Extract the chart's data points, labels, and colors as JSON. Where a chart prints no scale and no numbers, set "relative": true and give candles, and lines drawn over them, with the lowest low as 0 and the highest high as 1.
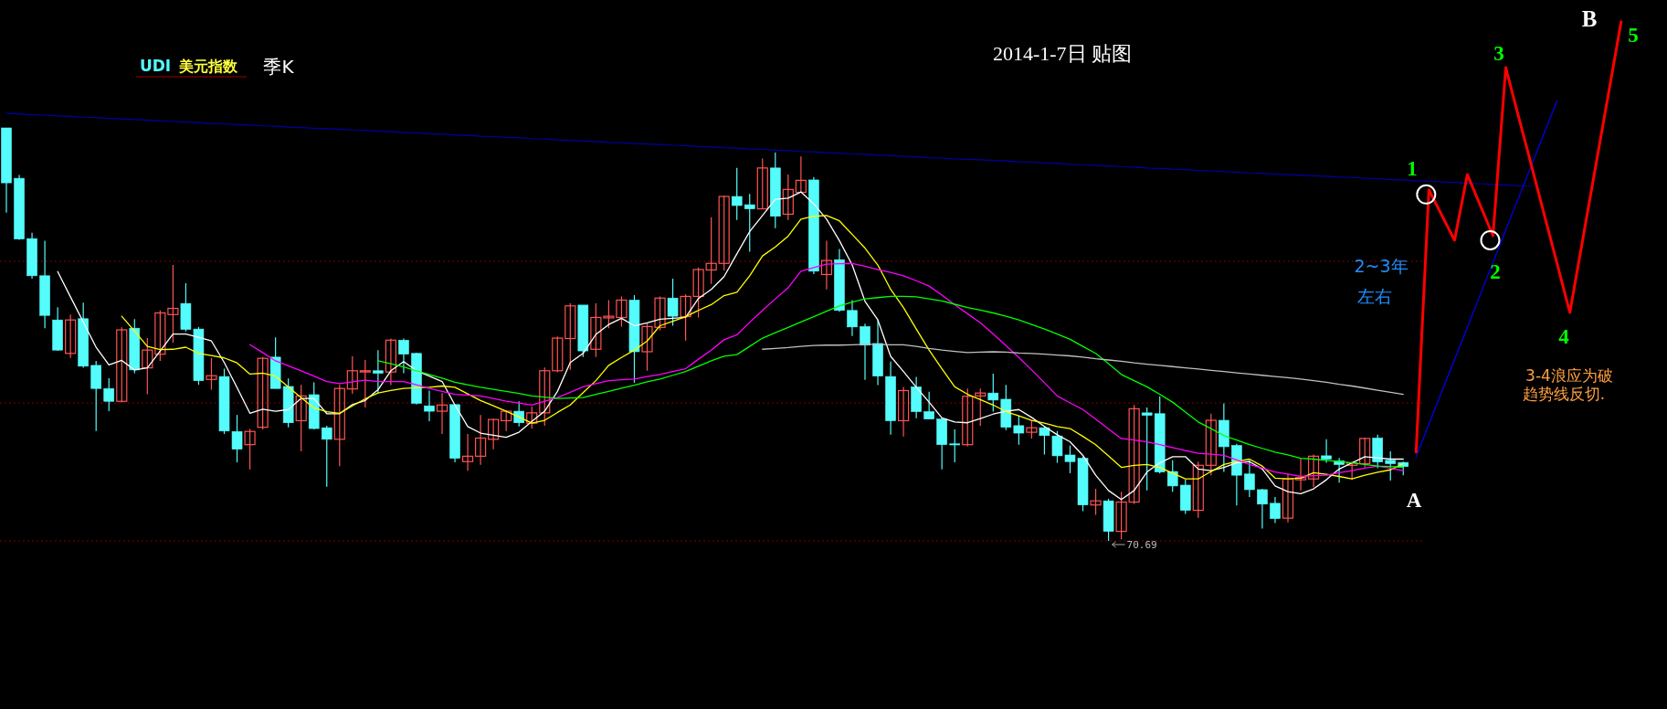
{
  "chart_data": {
    "type": "candlestick",
    "relative": true,
    "title": "2014-1-7日 贴图",
    "categories": [
      null,
      null,
      null,
      null,
      null,
      null,
      null,
      null,
      null,
      null,
      null,
      null,
      null,
      null,
      null,
      null,
      null,
      null,
      null,
      null,
      null,
      null,
      null,
      null,
      null,
      null,
      null,
      null,
      null,
      null,
      null,
      null,
      null,
      null,
      null,
      null,
      null,
      null,
      null,
      null,
      null,
      null,
      null,
      null,
      null,
      null,
      null,
      null,
      null,
      null,
      null,
      null,
      null,
      null,
      null,
      null,
      null,
      null,
      null,
      null,
      null,
      null,
      null,
      null,
      null,
      null,
      null,
      null,
      null,
      null,
      null,
      null,
      null,
      null,
      null,
      null,
      null,
      null,
      null,
      null,
      null,
      null,
      null,
      null,
      null,
      null,
      null,
      null,
      null,
      null,
      null,
      null,
      null,
      null,
      null,
      null,
      null,
      null,
      null,
      null,
      null,
      null,
      null,
      null,
      null,
      null,
      null,
      null,
      null,
      null,
      null,
      null,
      null,
      null,
      null,
      null,
      null,
      null,
      null,
      null,
      null,
      null,
      null,
      null,
      null,
      null,
      null
    ],
    "ohlc": [
      [
        1.0,
        1.0,
        0.795,
        0.867
      ],
      [
        0.878,
        0.886,
        0.729,
        0.731
      ],
      [
        0.732,
        0.746,
        0.635,
        0.642
      ],
      [
        0.642,
        0.727,
        0.515,
        0.546
      ],
      [
        0.535,
        0.566,
        0.46,
        0.462
      ],
      [
        0.454,
        0.548,
        0.443,
        0.535
      ],
      [
        0.538,
        0.577,
        0.419,
        0.423
      ],
      [
        0.425,
        0.436,
        0.266,
        0.369
      ],
      [
        0.369,
        0.394,
        0.314,
        0.338
      ],
      [
        0.338,
        0.517,
        0.335,
        0.511
      ],
      [
        0.515,
        0.537,
        0.406,
        0.414
      ],
      [
        0.419,
        0.491,
        0.355,
        0.462
      ],
      [
        0.452,
        0.558,
        0.436,
        0.552
      ],
      [
        0.548,
        0.668,
        0.48,
        0.563
      ],
      [
        0.575,
        0.624,
        0.507,
        0.512
      ],
      [
        0.513,
        0.518,
        0.378,
        0.388
      ],
      [
        0.391,
        0.443,
        0.366,
        0.4
      ],
      [
        0.398,
        0.417,
        0.259,
        0.266
      ],
      [
        0.265,
        0.305,
        0.19,
        0.222
      ],
      [
        0.233,
        0.271,
        0.173,
        0.265
      ],
      [
        0.275,
        0.445,
        0.27,
        0.442
      ],
      [
        0.445,
        0.493,
        0.369,
        0.369
      ],
      [
        0.374,
        0.393,
        0.275,
        0.286
      ],
      [
        0.291,
        0.378,
        0.217,
        0.351
      ],
      [
        0.354,
        0.384,
        0.27,
        0.272
      ],
      [
        0.274,
        0.279,
        0.131,
        0.246
      ],
      [
        0.246,
        0.378,
        0.181,
        0.369
      ],
      [
        0.368,
        0.447,
        0.356,
        0.412
      ],
      [
        0.409,
        0.438,
        0.323,
        0.412
      ],
      [
        0.412,
        0.462,
        0.358,
        0.406
      ],
      [
        0.409,
        0.49,
        0.377,
        0.486
      ],
      [
        0.486,
        0.49,
        0.406,
        0.452
      ],
      [
        0.454,
        0.456,
        0.33,
        0.333
      ],
      [
        0.327,
        0.364,
        0.29,
        0.314
      ],
      [
        0.314,
        0.358,
        0.259,
        0.329
      ],
      [
        0.33,
        0.33,
        0.19,
        0.2
      ],
      [
        0.192,
        0.259,
        0.17,
        0.205
      ],
      [
        0.205,
        0.305,
        0.184,
        0.249
      ],
      [
        0.246,
        0.296,
        0.222,
        0.294
      ],
      [
        0.291,
        0.316,
        0.266,
        0.314
      ],
      [
        0.314,
        0.338,
        0.277,
        0.286
      ],
      [
        0.285,
        0.325,
        0.272,
        0.31
      ],
      [
        0.31,
        0.42,
        0.279,
        0.412
      ],
      [
        0.412,
        0.495,
        0.408,
        0.491
      ],
      [
        0.49,
        0.575,
        0.414,
        0.569
      ],
      [
        0.571,
        0.571,
        0.445,
        0.46
      ],
      [
        0.464,
        0.575,
        0.445,
        0.541
      ],
      [
        0.54,
        0.583,
        0.515,
        0.544
      ],
      [
        0.541,
        0.592,
        0.519,
        0.583
      ],
      [
        0.583,
        0.595,
        0.383,
        0.458
      ],
      [
        0.458,
        0.528,
        0.412,
        0.519
      ],
      [
        0.517,
        0.592,
        0.51,
        0.588
      ],
      [
        0.588,
        0.635,
        0.521,
        0.544
      ],
      [
        0.543,
        0.597,
        0.485,
        0.592
      ],
      [
        0.592,
        0.662,
        0.541,
        0.657
      ],
      [
        0.656,
        0.784,
        0.622,
        0.672
      ],
      [
        0.672,
        0.836,
        0.655,
        0.834
      ],
      [
        0.834,
        0.903,
        0.777,
        0.812
      ],
      [
        0.814,
        0.84,
        0.7,
        0.804
      ],
      [
        0.804,
        0.926,
        0.804,
        0.903
      ],
      [
        0.903,
        0.94,
        0.757,
        0.786
      ],
      [
        0.791,
        0.887,
        0.777,
        0.851
      ],
      [
        0.844,
        0.931,
        0.844,
        0.873
      ],
      [
        0.874,
        0.881,
        0.646,
        0.653
      ],
      [
        0.645,
        0.727,
        0.609,
        0.679
      ],
      [
        0.681,
        0.707,
        0.555,
        0.558
      ],
      [
        0.558,
        0.583,
        0.496,
        0.518
      ],
      [
        0.519,
        0.526,
        0.39,
        0.474
      ],
      [
        0.478,
        0.535,
        0.377,
        0.399
      ],
      [
        0.398,
        0.434,
        0.257,
        0.291
      ],
      [
        0.291,
        0.373,
        0.253,
        0.364
      ],
      [
        0.373,
        0.397,
        0.297,
        0.313
      ],
      [
        0.313,
        0.361,
        0.294,
        0.295
      ],
      [
        0.295,
        0.297,
        0.173,
        0.233
      ],
      [
        0.235,
        0.27,
        0.19,
        0.233
      ],
      [
        0.233,
        0.369,
        0.229,
        0.35
      ],
      [
        0.351,
        0.369,
        0.279,
        0.358
      ],
      [
        0.358,
        0.405,
        0.313,
        0.341
      ],
      [
        0.343,
        0.378,
        0.268,
        0.275
      ],
      [
        0.279,
        0.303,
        0.233,
        0.261
      ],
      [
        0.263,
        0.292,
        0.248,
        0.274
      ],
      [
        0.274,
        0.277,
        0.209,
        0.255
      ],
      [
        0.254,
        0.266,
        0.189,
        0.206
      ],
      [
        0.208,
        0.231,
        0.164,
        0.192
      ],
      [
        0.2,
        0.204,
        0.072,
        0.087
      ],
      [
        0.087,
        0.126,
        0.063,
        0.097
      ],
      [
        0.097,
        0.102,
        0,
        0.023
      ],
      [
        0.023,
        0.119,
        0.004,
        0.094
      ],
      [
        0.094,
        0.329,
        0.089,
        0.32
      ],
      [
        0.31,
        0.323,
        0.122,
        0.304
      ],
      [
        0.308,
        0.35,
        0.163,
        0.167
      ],
      [
        0.168,
        0.195,
        0.119,
        0.133
      ],
      [
        0.135,
        0.148,
        0.065,
        0.074
      ],
      [
        0.074,
        0.192,
        0.056,
        0.183
      ],
      [
        0.183,
        0.308,
        0.159,
        0.292
      ],
      [
        0.292,
        0.333,
        0.167,
        0.228
      ],
      [
        0.231,
        0.235,
        0.086,
        0.159
      ],
      [
        0.162,
        0.196,
        0.106,
        0.124
      ],
      [
        0.124,
        0.126,
        0.03,
        0.089
      ],
      [
        0.091,
        0.106,
        0.043,
        0.054
      ],
      [
        0.055,
        0.163,
        0.045,
        0.15
      ],
      [
        0.148,
        0.2,
        0.122,
        0.153
      ],
      [
        0.15,
        0.209,
        0.13,
        0.205
      ],
      [
        0.206,
        0.246,
        0.189,
        0.198
      ],
      [
        0.194,
        0.201,
        0.141,
        0.185
      ],
      [
        0.183,
        0.192,
        0.148,
        0.189
      ],
      [
        0.187,
        0.25,
        0.178,
        0.248
      ],
      [
        0.249,
        0.257,
        0.176,
        0.191
      ],
      [
        0.195,
        0.217,
        0.146,
        0.187
      ],
      [
        0.19,
        0.192,
        0.159,
        0.18
      ],
      null,
      null,
      null,
      null,
      null,
      null,
      null,
      null,
      null,
      null,
      null,
      null,
      null,
      null,
      null,
      null,
      null
    ],
    "series": [
      {
        "type": "line",
        "color": "#ffffff",
        "values": [
          null,
          null,
          null,
          null,
          0.652,
          0.591,
          0.53,
          0.469,
          0.426,
          0.437,
          0.414,
          0.419,
          0.46,
          0.501,
          0.501,
          0.493,
          0.484,
          0.432,
          0.371,
          0.309,
          0.319,
          0.314,
          0.318,
          0.345,
          0.345,
          0.308,
          0.308,
          0.33,
          0.34,
          0.366,
          0.412,
          0.434,
          0.412,
          0.399,
          0.386,
          0.329,
          0.277,
          0.261,
          0.256,
          0.251,
          0.263,
          0.289,
          0.314,
          0.362,
          0.432,
          0.454,
          0.5,
          0.524,
          0.539,
          0.521,
          0.528,
          0.537,
          0.539,
          0.541,
          0.587,
          0.609,
          0.64,
          0.695,
          0.749,
          0.788,
          0.827,
          0.83,
          0.845,
          0.816,
          0.779,
          0.727,
          0.668,
          0.58,
          0.535,
          0.447,
          0.41,
          0.372,
          0.336,
          0.298,
          0.288,
          0.286,
          0.296,
          0.307,
          0.314,
          0.318,
          0.299,
          0.277,
          0.257,
          0.24,
          0.207,
          0.159,
          0.122,
          0.1,
          0.122,
          0.167,
          0.189,
          0.204,
          0.204,
          0.174,
          0.17,
          0.178,
          0.189,
          0.192,
          0.174,
          0.133,
          0.119,
          0.114,
          0.126,
          0.148,
          0.174,
          0.189,
          0.204,
          0.201,
          0.198,
          0.198,
          null,
          null,
          null,
          null,
          null,
          null,
          null,
          null,
          null,
          null,
          null,
          null,
          null,
          null,
          null,
          null,
          null
        ]
      },
      {
        "type": "line",
        "color": "#ffff00",
        "values": [
          null,
          null,
          null,
          null,
          null,
          null,
          null,
          null,
          null,
          0.544,
          0.508,
          0.471,
          0.463,
          0.464,
          0.469,
          0.454,
          0.449,
          0.443,
          0.431,
          0.404,
          0.406,
          0.399,
          0.373,
          0.347,
          0.322,
          0.313,
          0.309,
          0.327,
          0.344,
          0.358,
          0.364,
          0.369,
          0.371,
          0.372,
          0.375,
          0.372,
          0.356,
          0.34,
          0.327,
          0.314,
          0.3,
          0.285,
          0.292,
          0.311,
          0.329,
          0.359,
          0.388,
          0.425,
          0.444,
          0.462,
          0.484,
          0.521,
          0.532,
          0.543,
          0.558,
          0.572,
          0.594,
          0.602,
          0.642,
          0.69,
          0.712,
          0.738,
          0.779,
          0.786,
          0.788,
          0.775,
          0.742,
          0.709,
          0.668,
          0.609,
          0.565,
          0.513,
          0.462,
          0.417,
          0.373,
          0.355,
          0.342,
          0.329,
          0.313,
          0.303,
          0.292,
          0.285,
          0.277,
          0.272,
          0.253,
          0.233,
          0.206,
          0.178,
          0.183,
          0.185,
          0.178,
          0.164,
          0.15,
          0.15,
          0.168,
          0.185,
          0.192,
          0.198,
          0.181,
          0.152,
          0.15,
          0.152,
          0.165,
          0.161,
          0.156,
          0.15,
          0.159,
          0.166,
          0.172,
          0.187,
          null,
          null,
          null,
          null,
          null,
          null,
          null,
          null,
          null,
          null,
          null,
          null,
          null,
          null,
          null,
          null,
          null
        ]
      },
      {
        "type": "line",
        "color": "#ff00ff",
        "values": [
          null,
          null,
          null,
          null,
          null,
          null,
          null,
          null,
          null,
          null,
          null,
          null,
          null,
          null,
          null,
          null,
          null,
          null,
          null,
          0.475,
          0.456,
          0.436,
          0.424,
          0.412,
          0.399,
          0.386,
          0.381,
          0.385,
          0.389,
          0.386,
          0.386,
          0.386,
          0.378,
          0.369,
          0.362,
          0.355,
          0.353,
          0.351,
          0.345,
          0.338,
          0.334,
          0.329,
          0.338,
          0.347,
          0.36,
          0.373,
          0.381,
          0.388,
          0.39,
          0.392,
          0.398,
          0.403,
          0.41,
          0.417,
          0.44,
          0.462,
          0.487,
          0.499,
          0.529,
          0.558,
          0.586,
          0.613,
          0.653,
          0.662,
          0.67,
          0.671,
          0.672,
          0.665,
          0.657,
          0.65,
          0.642,
          0.63,
          0.617,
          0.595,
          0.572,
          0.55,
          0.528,
          0.501,
          0.473,
          0.444,
          0.414,
          0.383,
          0.351,
          0.334,
          0.318,
          0.295,
          0.271,
          0.248,
          0.244,
          0.24,
          0.233,
          0.226,
          0.219,
          0.212,
          0.21,
          0.207,
          0.196,
          0.185,
          0.176,
          0.167,
          0.162,
          0.156,
          0.158,
          0.159,
          0.165,
          0.17,
          0.176,
          0.181,
          0.176,
          0.17,
          null,
          null,
          null,
          null,
          null,
          null,
          null,
          null,
          null,
          null,
          null,
          null,
          null,
          null,
          null,
          null,
          null
        ]
      },
      {
        "type": "line",
        "color": "#00ff00",
        "values": [
          null,
          null,
          null,
          null,
          null,
          null,
          null,
          null,
          null,
          null,
          null,
          null,
          null,
          null,
          null,
          null,
          null,
          null,
          null,
          null,
          null,
          null,
          null,
          null,
          null,
          null,
          null,
          null,
          null,
          0.436,
          0.429,
          0.421,
          0.412,
          0.403,
          0.394,
          0.384,
          0.378,
          0.372,
          0.367,
          0.362,
          0.357,
          0.351,
          0.348,
          0.345,
          0.346,
          0.347,
          0.355,
          0.362,
          0.37,
          0.377,
          0.385,
          0.392,
          0.401,
          0.41,
          0.423,
          0.436,
          0.447,
          0.451,
          0.471,
          0.491,
          0.504,
          0.517,
          0.53,
          0.543,
          0.556,
          0.569,
          0.578,
          0.586,
          0.589,
          0.592,
          0.592,
          0.591,
          0.586,
          0.581,
          0.573,
          0.565,
          0.559,
          0.552,
          0.544,
          0.535,
          0.524,
          0.513,
          0.501,
          0.488,
          0.471,
          0.454,
          0.429,
          0.403,
          0.388,
          0.373,
          0.355,
          0.336,
          0.312,
          0.288,
          0.272,
          0.255,
          0.244,
          0.233,
          0.224,
          0.215,
          0.208,
          0.2,
          0.198,
          0.195,
          0.192,
          0.189,
          0.185,
          0.181,
          0.18,
          0.178,
          null,
          null,
          null,
          null,
          null,
          null,
          null,
          null,
          null,
          null,
          null,
          null,
          null,
          null,
          null,
          null,
          null
        ]
      },
      {
        "type": "line",
        "color": "#c0c0c0",
        "values": [
          null,
          null,
          null,
          null,
          null,
          null,
          null,
          null,
          null,
          null,
          null,
          null,
          null,
          null,
          null,
          null,
          null,
          null,
          null,
          null,
          null,
          null,
          null,
          null,
          null,
          null,
          null,
          null,
          null,
          null,
          null,
          null,
          null,
          null,
          null,
          null,
          null,
          null,
          null,
          null,
          null,
          null,
          null,
          null,
          null,
          null,
          null,
          null,
          null,
          null,
          null,
          null,
          null,
          null,
          null,
          null,
          null,
          null,
          null,
          0.464,
          0.466,
          0.468,
          0.471,
          0.473,
          0.474,
          0.474,
          0.475,
          0.476,
          0.476,
          0.475,
          0.475,
          0.471,
          0.466,
          0.462,
          0.459,
          0.456,
          0.457,
          0.458,
          0.457,
          0.455,
          0.454,
          0.452,
          0.45,
          0.448,
          0.445,
          0.441,
          0.438,
          0.435,
          0.431,
          0.428,
          0.425,
          0.422,
          0.419,
          0.416,
          0.413,
          0.41,
          0.407,
          0.404,
          0.401,
          0.398,
          0.395,
          0.392,
          0.388,
          0.384,
          0.379,
          0.375,
          0.37,
          0.365,
          0.36,
          0.355,
          null,
          null,
          null,
          null,
          null,
          null,
          null,
          null,
          null,
          null,
          null,
          null,
          null,
          null,
          null,
          null,
          null
        ]
      },
      {
        "type": "line",
        "color": "#0000a8",
        "values": [
          1.035,
          1.034,
          1.032,
          1.031,
          1.029,
          1.028,
          1.026,
          1.025,
          1.023,
          1.022,
          1.02,
          1.019,
          1.017,
          1.016,
          1.014,
          1.013,
          1.011,
          1.01,
          1.008,
          1.007,
          1.005,
          1.004,
          1.002,
          1.001,
          0.999,
          0.998,
          0.997,
          0.995,
          0.994,
          0.992,
          0.991,
          0.989,
          0.988,
          0.986,
          0.985,
          0.983,
          0.982,
          0.98,
          0.979,
          0.977,
          0.976,
          0.974,
          0.973,
          0.971,
          0.97,
          0.968,
          0.967,
          0.965,
          0.964,
          0.962,
          0.961,
          0.96,
          0.958,
          0.957,
          0.955,
          0.954,
          0.952,
          0.951,
          0.949,
          0.948,
          0.946,
          0.945,
          0.943,
          0.942,
          0.94,
          0.939,
          0.937,
          0.936,
          0.934,
          0.933,
          0.931,
          0.93,
          0.928,
          0.927,
          0.925,
          0.924,
          0.923,
          0.921,
          0.92,
          0.918,
          0.917,
          0.915,
          0.914,
          0.912,
          0.911,
          0.909,
          0.908,
          0.906,
          0.905,
          0.903,
          0.902,
          0.9,
          0.899,
          0.897,
          0.896,
          0.894,
          0.893,
          0.891,
          0.89,
          0.888,
          0.887,
          0.886,
          0.884,
          0.883,
          0.881,
          0.88,
          0.878,
          0.877,
          0.875,
          0.874,
          0.872,
          0.871,
          0.869,
          0.868,
          0.866,
          0.865,
          0.863,
          0.862,
          0.86,
          0.859,
          null,
          null,
          null,
          null,
          null,
          null,
          null
        ]
      },
      {
        "type": "line",
        "color": "#0000ff",
        "values": [
          null,
          null,
          null,
          null,
          null,
          null,
          null,
          null,
          null,
          null,
          null,
          null,
          null,
          null,
          null,
          null,
          null,
          null,
          null,
          null,
          null,
          null,
          null,
          null,
          null,
          null,
          null,
          null,
          null,
          null,
          null,
          null,
          null,
          null,
          null,
          null,
          null,
          null,
          null,
          null,
          null,
          null,
          null,
          null,
          null,
          null,
          null,
          null,
          null,
          null,
          null,
          null,
          null,
          null,
          null,
          null,
          null,
          null,
          null,
          null,
          null,
          null,
          null,
          null,
          null,
          null,
          null,
          null,
          null,
          null,
          null,
          null,
          null,
          null,
          null,
          null,
          null,
          null,
          null,
          null,
          null,
          null,
          null,
          null,
          null,
          null,
          null,
          null,
          null,
          null,
          null,
          null,
          null,
          null,
          null,
          null,
          null,
          null,
          null,
          null,
          null,
          null,
          null,
          null,
          null,
          null,
          null,
          null,
          null,
          null,
          0.204,
          0.282,
          0.361,
          0.439,
          0.517,
          0.596,
          0.674,
          0.753,
          0.831,
          0.909,
          0.988,
          1.066,
          null,
          null,
          null,
          null,
          null
        ]
      },
      {
        "type": "line",
        "color": "#ff0000",
        "values": [
          null,
          null,
          null,
          null,
          null,
          null,
          null,
          null,
          null,
          null,
          null,
          null,
          null,
          null,
          null,
          null,
          null,
          null,
          null,
          null,
          null,
          null,
          null,
          null,
          null,
          null,
          null,
          null,
          null,
          null,
          null,
          null,
          null,
          null,
          null,
          null,
          null,
          null,
          null,
          null,
          null,
          null,
          null,
          null,
          null,
          null,
          null,
          null,
          null,
          null,
          null,
          null,
          null,
          null,
          null,
          null,
          null,
          null,
          null,
          null,
          null,
          null,
          null,
          null,
          null,
          null,
          null,
          null,
          null,
          null,
          null,
          null,
          null,
          null,
          null,
          null,
          null,
          null,
          null,
          null,
          null,
          null,
          null,
          null,
          null,
          null,
          null,
          null,
          null,
          null,
          null,
          null,
          null,
          null,
          null,
          null,
          null,
          null,
          null,
          null,
          null,
          null,
          null,
          null,
          null,
          null,
          null,
          null,
          null,
          null,
          0.215,
          0.85,
          0.789,
          0.728,
          0.887,
          0.813,
          0.739,
          1.146,
          1.027,
          0.909,
          0.79,
          0.672,
          0.553,
          0.729,
          0.905,
          1.081,
          1.257
        ]
      }
    ],
    "ref_lines": [
      {
        "axis": "y",
        "value": 0.677,
        "color": "#800000",
        "line_style": "dotted"
      },
      {
        "axis": "y",
        "value": 0.334,
        "color": "#800000",
        "line_style": "dotted"
      },
      {
        "axis": "y",
        "value": 0,
        "color": "#800000",
        "line_style": "dotted"
      }
    ],
    "annotations": [
      "1",
      "2",
      "3",
      "4",
      "5",
      "A",
      "B",
      "70.69",
      "2~3年",
      "左右",
      "3-4浪应为破",
      "趋势线反切.",
      "UDI",
      "美元指数",
      "季K"
    ]
  }
}
